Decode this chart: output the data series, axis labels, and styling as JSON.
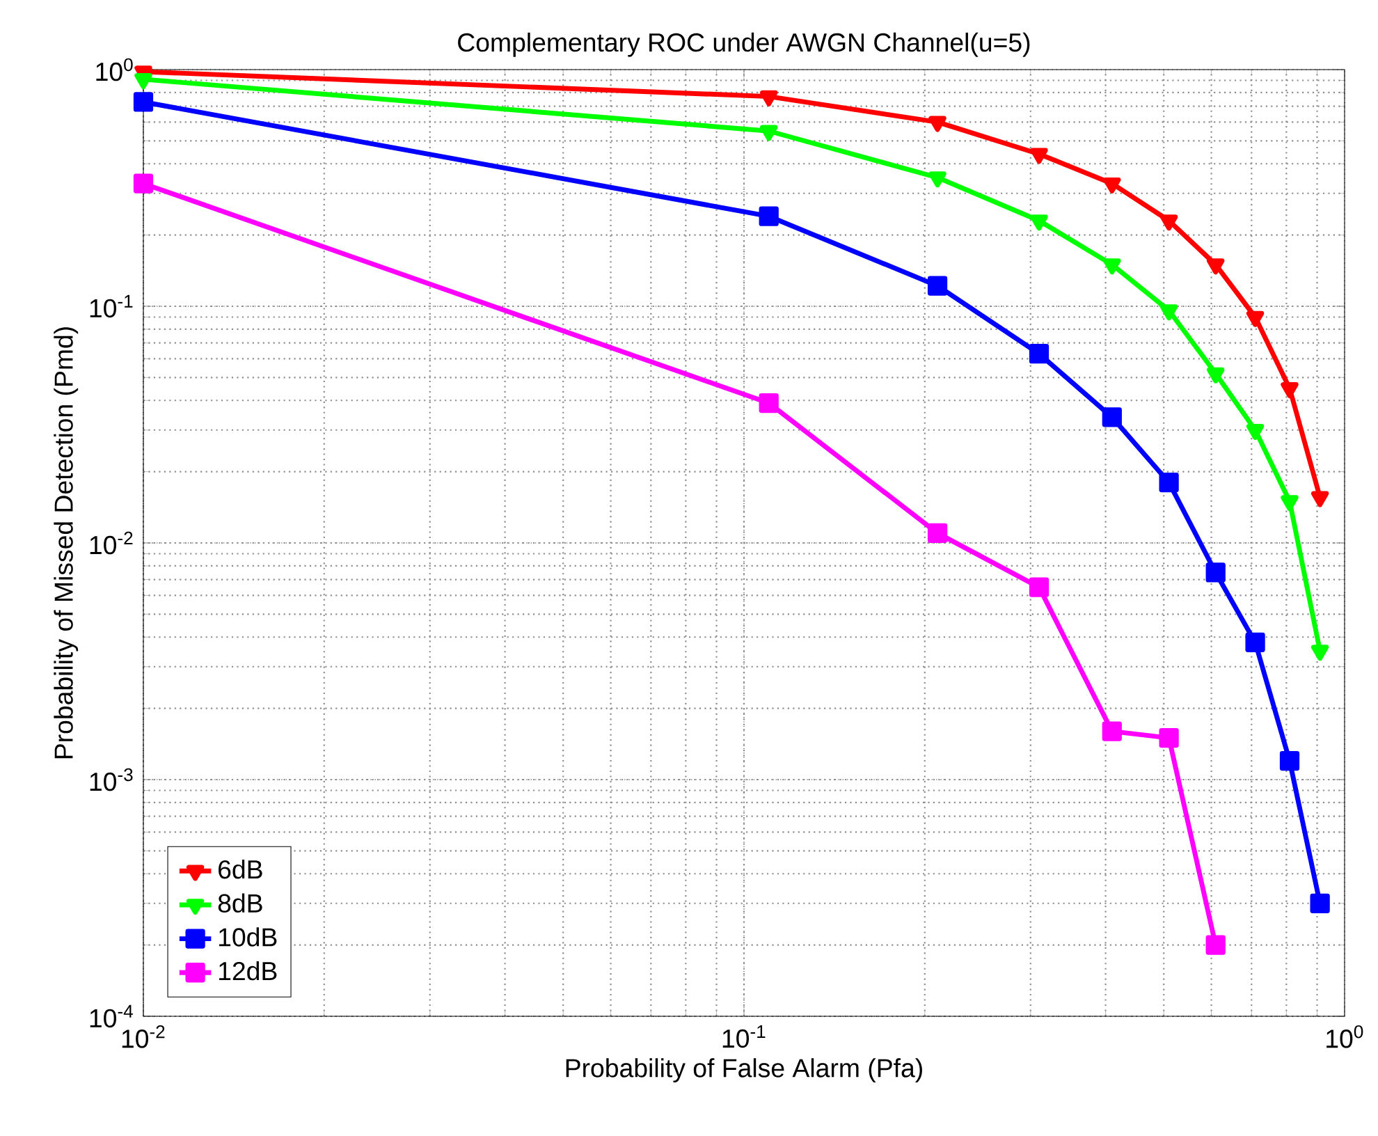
{
  "chart_data": {
    "type": "line",
    "title": "Complementary ROC under AWGN Channel(u=5)",
    "xlabel": "Probability of False Alarm (Pfa)",
    "ylabel": "Probability of Missed Detection (Pmd)",
    "log": "xy",
    "grid": true,
    "legend": "bottom left",
    "line_style": "solid",
    "x": [
      0.01,
      0.11,
      0.21,
      0.31,
      0.41,
      0.51,
      0.61,
      0.71,
      0.81,
      0.91
    ],
    "xlim": [
      0.01,
      1
    ],
    "ylim": [
      0.0001,
      1
    ],
    "xticks": [
      {
        "value": 0.01,
        "label": "10$^{-2}$"
      },
      {
        "value": 0.1,
        "label": "10$^{-1}$"
      },
      {
        "value": 1,
        "label": "10$^{0}$"
      }
    ],
    "yticks": [
      {
        "value": 0.0001,
        "label": "10$^{-4}$"
      },
      {
        "value": 0.001,
        "label": "10$^{-3}$"
      },
      {
        "value": 0.01,
        "label": "10$^{-2}$"
      },
      {
        "value": 0.1,
        "label": "10$^{-1}$"
      },
      {
        "value": 1,
        "label": "10$^{0}$"
      }
    ],
    "series": [
      {
        "name": "6dB",
        "color": "#ff0000",
        "marker": "triangle",
        "values": [
          0.98,
          0.77,
          0.6,
          0.44,
          0.33,
          0.23,
          0.15,
          0.09,
          0.045,
          0.0156
        ]
      },
      {
        "name": "8dB",
        "color": "#00ff00",
        "marker": "triangle",
        "values": [
          0.91,
          0.55,
          0.35,
          0.23,
          0.15,
          0.096,
          0.052,
          0.03,
          0.015,
          0.0035
        ]
      },
      {
        "name": "10dB",
        "color": "#0000ff",
        "marker": "square",
        "values": [
          0.73,
          0.24,
          0.122,
          0.063,
          0.034,
          0.018,
          0.0075,
          0.0038,
          0.0012,
          0.0003
        ]
      },
      {
        "name": "12dB",
        "color": "#ff00ff",
        "marker": "square",
        "values": [
          0.33,
          0.039,
          0.011,
          0.0065,
          0.0016,
          0.0015,
          0.0002,
          null,
          null,
          null
        ]
      }
    ]
  }
}
